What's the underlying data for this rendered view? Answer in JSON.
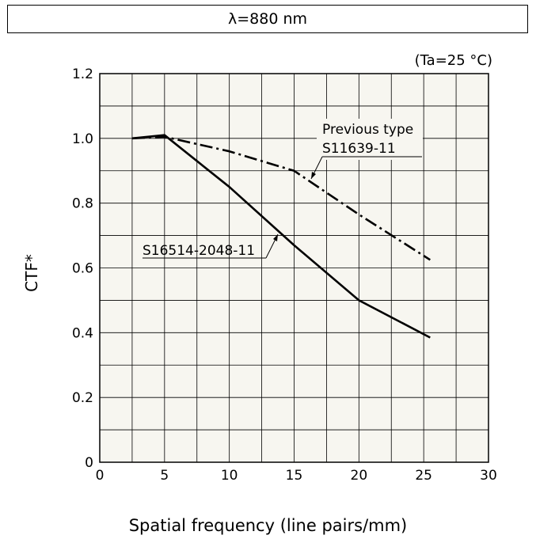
{
  "header": {
    "wavelength": "λ=880 nm"
  },
  "condition": "(Ta=25 °C)",
  "chart_data": {
    "type": "line",
    "xlabel": "Spatial frequency (line pairs/mm)",
    "ylabel": "CTF*",
    "xlim": [
      0,
      30
    ],
    "ylim": [
      0,
      1.2
    ],
    "x_ticks": [
      0,
      5,
      10,
      15,
      20,
      25,
      30
    ],
    "y_ticks": [
      0,
      0.2,
      0.4,
      0.6,
      0.8,
      1.0,
      1.2
    ],
    "x_tick_labels": [
      "0",
      "5",
      "10",
      "15",
      "20",
      "25",
      "30"
    ],
    "y_tick_labels": [
      "0",
      "0.2",
      "0.4",
      "0.6",
      "0.8",
      "1.0",
      "1.2"
    ],
    "grid": true,
    "series": [
      {
        "name": "S16514-2048-11",
        "style": "solid",
        "x": [
          2.5,
          5,
          10,
          15,
          20,
          25.5
        ],
        "y": [
          1.0,
          1.01,
          0.85,
          0.67,
          0.5,
          0.385
        ]
      },
      {
        "name": "Previous type S11639-11",
        "style": "dash-dot",
        "x": [
          2.5,
          5,
          10,
          15,
          20,
          25.5
        ],
        "y": [
          1.0,
          1.005,
          0.96,
          0.9,
          0.765,
          0.625
        ]
      }
    ],
    "annotations": [
      {
        "text": "S16514-2048-11",
        "series": 0
      },
      {
        "text_line1": "Previous type",
        "text_line2": "S11639-11",
        "series": 1
      }
    ]
  },
  "colors": {
    "plot_bg": "#f7f6f0",
    "line": "#000000",
    "grid": "#000000"
  }
}
